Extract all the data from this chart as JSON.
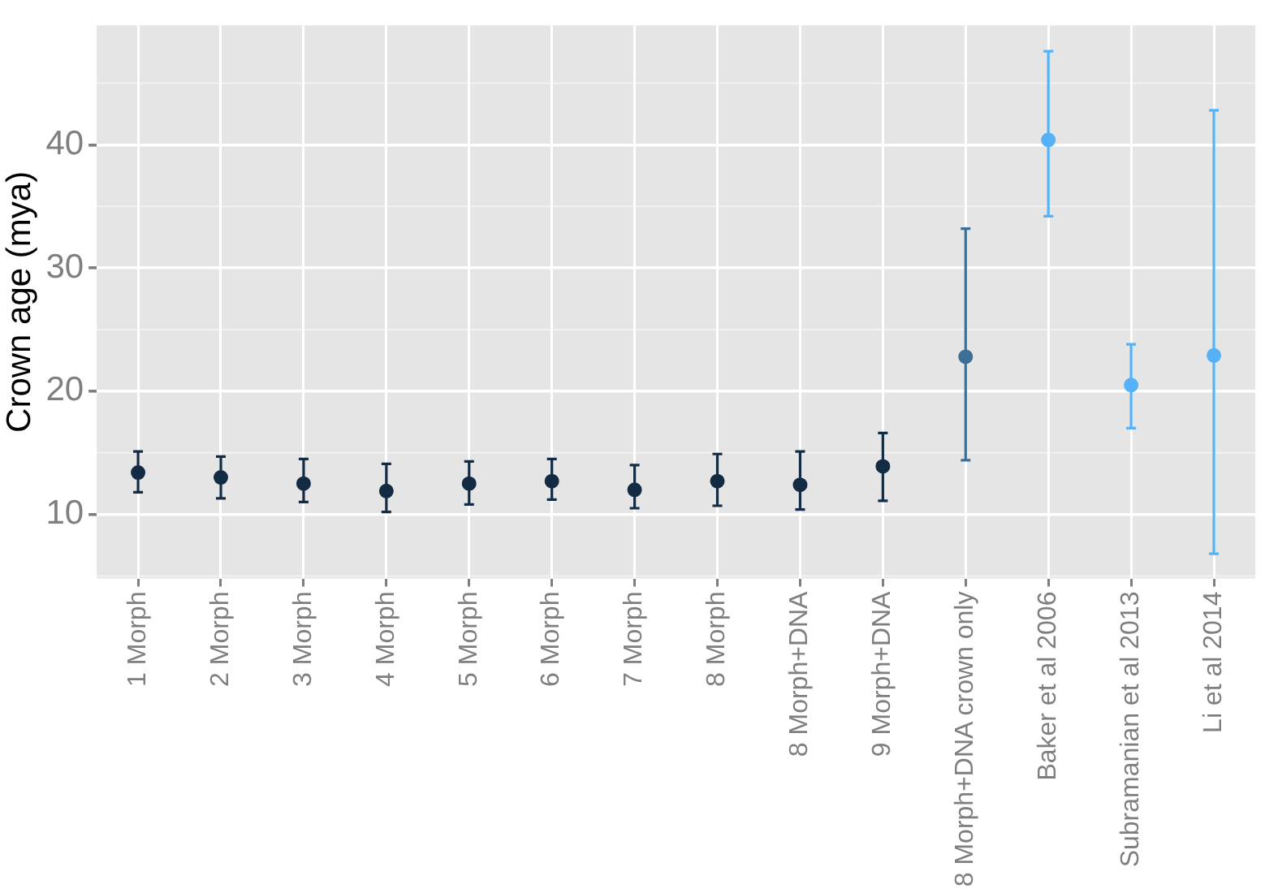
{
  "chart_data": {
    "type": "scatter",
    "ylabel": "Crown age (mya)",
    "categories": [
      "1 Morph",
      "2 Morph",
      "3 Morph",
      "4 Morph",
      "5 Morph",
      "6 Morph",
      "7 Morph",
      "8 Morph",
      "8 Morph+DNA",
      "9 Morph+DNA",
      "8 Morph+DNA crown only",
      "Baker et al 2006",
      "Subramanian et al 2013",
      "Li et al 2014"
    ],
    "values": [
      13.4,
      13.0,
      12.5,
      11.9,
      12.5,
      12.7,
      12.0,
      12.7,
      12.4,
      13.9,
      22.8,
      40.4,
      20.5,
      22.9
    ],
    "errors": [
      [
        11.8,
        15.1
      ],
      [
        11.3,
        14.7
      ],
      [
        11.0,
        14.5
      ],
      [
        10.2,
        14.1
      ],
      [
        10.8,
        14.3
      ],
      [
        11.2,
        14.5
      ],
      [
        10.5,
        14.0
      ],
      [
        10.7,
        14.9
      ],
      [
        10.4,
        15.1
      ],
      [
        11.1,
        16.6
      ],
      [
        14.4,
        33.2
      ],
      [
        34.2,
        47.6
      ],
      [
        17.0,
        23.8
      ],
      [
        6.8,
        42.8
      ]
    ],
    "colors": [
      "#132b43",
      "#132b43",
      "#132b43",
      "#132b43",
      "#132b43",
      "#132b43",
      "#132b43",
      "#132b43",
      "#132b43",
      "#132b43",
      "#3d6e96",
      "#56b1f7",
      "#56b1f7",
      "#56b1f7"
    ],
    "ylim": [
      4.8,
      49.7
    ],
    "yticks": [
      10,
      20,
      30,
      40
    ],
    "grid": true,
    "marker": "circle",
    "legend": false
  }
}
